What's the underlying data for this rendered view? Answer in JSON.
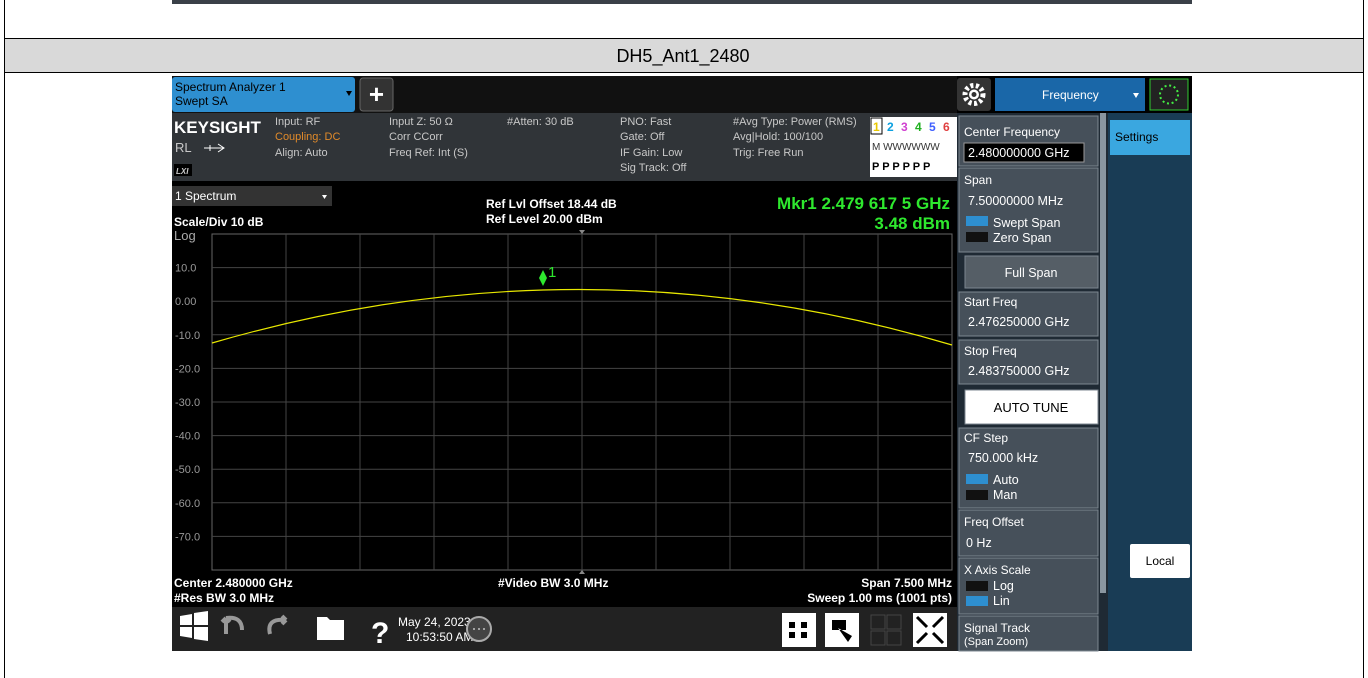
{
  "header": {
    "title": "DH5_Ant1_2480"
  },
  "toolbar": {
    "tab_line1": "Spectrum Analyzer 1",
    "tab_line2": "Swept SA",
    "add": "+",
    "menu": "Frequency"
  },
  "info": {
    "brand": "KEYSIGHT",
    "rl": "RL",
    "lxi": "LXI",
    "input": "Input: RF",
    "coupling": "Coupling: DC",
    "align": "Align: Auto",
    "input_z": "Input Z: 50 Ω",
    "corr": "Corr CCorr",
    "freq_ref": "Freq Ref: Int (S)",
    "atten": "#Atten: 30 dB",
    "pno": "PNO: Fast",
    "gate": "Gate: Off",
    "if_gain": "IF Gain: Low",
    "sig_track": "Sig Track: Off",
    "avg_type": "#Avg Type: Power (RMS)",
    "avg_hold": "Avg|Hold: 100/100",
    "trig": "Trig: Free Run",
    "traces": [
      "1",
      "2",
      "3",
      "4",
      "5",
      "6"
    ],
    "trace_types": "M WWWWWW",
    "detectors": "P P P P P P"
  },
  "graph": {
    "window": "1 Spectrum",
    "scale": "Scale/Div 10 dB",
    "log": "Log",
    "ref_offset": "Ref Lvl Offset 18.44 dB",
    "ref_level": "Ref Level 20.00 dBm",
    "marker_freq": "Mkr1  2.479 617 5 GHz",
    "marker_level": "3.48 dBm",
    "marker_label": "1",
    "y_labels": [
      "10.0",
      "0.00",
      "-10.0",
      "-20.0",
      "-30.0",
      "-40.0",
      "-50.0",
      "-60.0",
      "-70.0"
    ],
    "center": "Center 2.480000 GHz",
    "res_bw": "#Res BW 3.0 MHz",
    "video_bw": "#Video BW 3.0 MHz",
    "span": "Span 7.500 MHz",
    "sweep": "Sweep 1.00 ms (1001 pts)"
  },
  "panel": {
    "center_freq": "Center Frequency",
    "center_val": "2.480000000 GHz",
    "span": "Span",
    "span_val": "7.50000000 MHz",
    "swept_span": "Swept Span",
    "zero_span": "Zero Span",
    "full_span": "Full Span",
    "start_freq": "Start Freq",
    "start_val": "2.476250000 GHz",
    "stop_freq": "Stop Freq",
    "stop_val": "2.483750000 GHz",
    "auto_tune": "AUTO TUNE",
    "cf_step": "CF Step",
    "cf_step_val": "750.000 kHz",
    "auto": "Auto",
    "man": "Man",
    "freq_offset": "Freq Offset",
    "freq_offset_val": "0 Hz",
    "x_axis_scale": "X Axis Scale",
    "log": "Log",
    "lin": "Lin",
    "signal_track": "Signal Track",
    "span_zoom": "(Span Zoom)",
    "settings": "Settings",
    "local": "Local"
  },
  "taskbar": {
    "help": "?",
    "date": "May 24, 2023",
    "time": "10:53:50 AM"
  }
}
